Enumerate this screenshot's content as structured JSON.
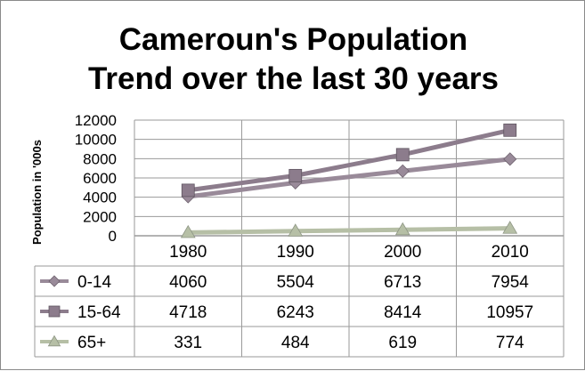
{
  "chart_data": {
    "type": "line",
    "title_lines": [
      "Cameroun's Population",
      "Trend over the last 30 years"
    ],
    "ylabel": "Population in '000s",
    "ylim": [
      0,
      12000
    ],
    "yticks": [
      "0",
      "2000",
      "4000",
      "6000",
      "8000",
      "10000",
      "12000"
    ],
    "grid": true,
    "legend": "in data table (left column)",
    "categories": [
      "1980",
      "1990",
      "2000",
      "2010"
    ],
    "series": [
      {
        "name": "0-14",
        "values": [
          4060,
          5504,
          6713,
          7954
        ],
        "color": "#998a99",
        "marker": "diamond"
      },
      {
        "name": "15-64",
        "values": [
          4718,
          6243,
          8414,
          10957
        ],
        "color": "#8c7c8c",
        "marker": "square"
      },
      {
        "name": "65+",
        "values": [
          331,
          484,
          619,
          774
        ],
        "color": "#b6bfa6",
        "marker": "triangle"
      }
    ],
    "table": {
      "rows": [
        [
          "4060",
          "5504",
          "6713",
          "7954"
        ],
        [
          "4718",
          "6243",
          "8414",
          "10957"
        ],
        [
          "331",
          "484",
          "619",
          "774"
        ]
      ]
    }
  }
}
